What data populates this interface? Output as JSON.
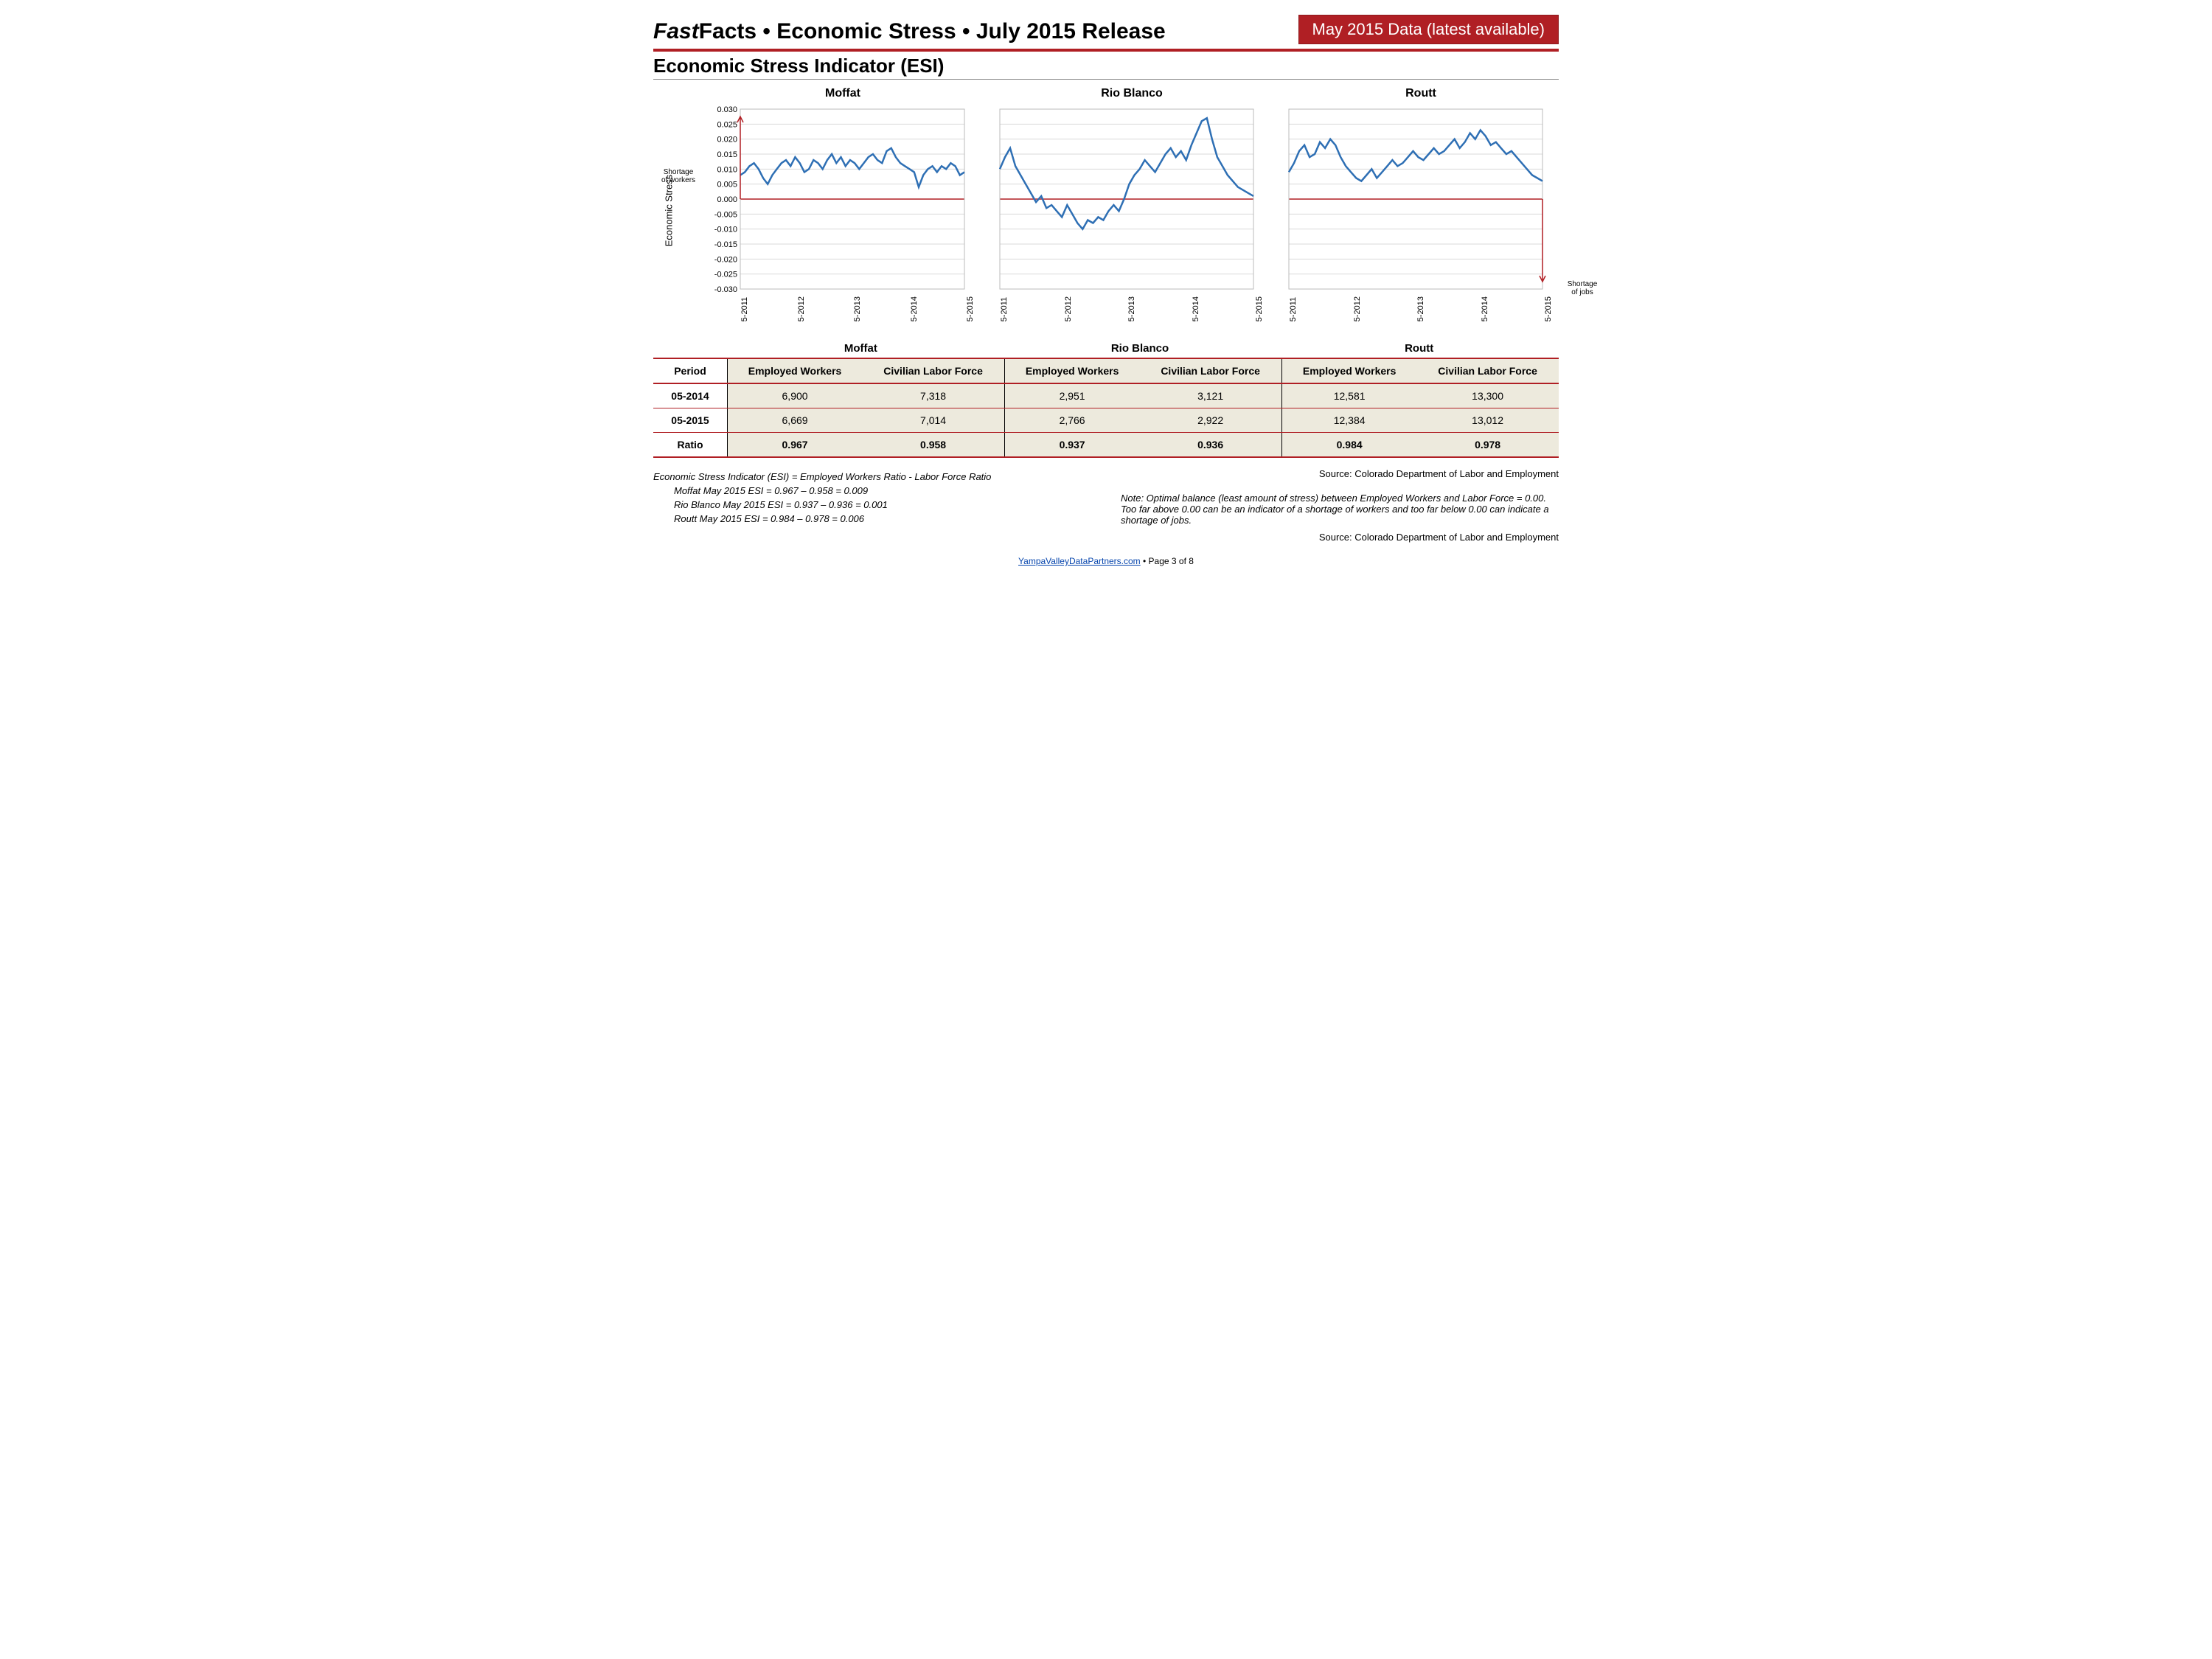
{
  "header": {
    "fast": "Fast",
    "facts": "Facts",
    "sep": " • ",
    "topic": "Economic Stress",
    "rel": "July 2015 Release",
    "badge": "May 2015 Data (latest available)",
    "subtitle": "Economic Stress Indicator (ESI)"
  },
  "axis": {
    "ylabel": "Economic Stress",
    "top_annot": "Shortage\nof workers",
    "bot_annot": "Shortage\nof jobs",
    "ylim": [
      -0.03,
      0.03
    ],
    "yticks": [
      0.03,
      0.025,
      0.02,
      0.015,
      0.01,
      0.005,
      0.0,
      -0.005,
      -0.01,
      -0.015,
      -0.02,
      -0.025,
      -0.03
    ],
    "xticks": [
      "5-2011",
      "5-2012",
      "5-2013",
      "5-2014",
      "5-2015"
    ],
    "line_color": "#2e6fb4",
    "line_width": 2.5,
    "grid_color": "#d9d9d9",
    "zero_color": "#b01f24",
    "bg": "#ffffff"
  },
  "panels": [
    {
      "name": "Moffat",
      "series": [
        0.008,
        0.009,
        0.011,
        0.012,
        0.01,
        0.007,
        0.005,
        0.008,
        0.01,
        0.012,
        0.013,
        0.011,
        0.014,
        0.012,
        0.009,
        0.01,
        0.013,
        0.012,
        0.01,
        0.013,
        0.015,
        0.012,
        0.014,
        0.011,
        0.013,
        0.012,
        0.01,
        0.012,
        0.014,
        0.015,
        0.013,
        0.012,
        0.016,
        0.017,
        0.014,
        0.012,
        0.011,
        0.01,
        0.009,
        0.004,
        0.008,
        0.01,
        0.011,
        0.009,
        0.011,
        0.01,
        0.012,
        0.011,
        0.008,
        0.009
      ]
    },
    {
      "name": "Rio Blanco",
      "series": [
        0.01,
        0.014,
        0.017,
        0.011,
        0.008,
        0.005,
        0.002,
        -0.001,
        0.001,
        -0.003,
        -0.002,
        -0.004,
        -0.006,
        -0.002,
        -0.005,
        -0.008,
        -0.01,
        -0.007,
        -0.008,
        -0.006,
        -0.007,
        -0.004,
        -0.002,
        -0.004,
        0.0,
        0.005,
        0.008,
        0.01,
        0.013,
        0.011,
        0.009,
        0.012,
        0.015,
        0.017,
        0.014,
        0.016,
        0.013,
        0.018,
        0.022,
        0.026,
        0.027,
        0.02,
        0.014,
        0.011,
        0.008,
        0.006,
        0.004,
        0.003,
        0.002,
        0.001
      ]
    },
    {
      "name": "Routt",
      "series": [
        0.009,
        0.012,
        0.016,
        0.018,
        0.014,
        0.015,
        0.019,
        0.017,
        0.02,
        0.018,
        0.014,
        0.011,
        0.009,
        0.007,
        0.006,
        0.008,
        0.01,
        0.007,
        0.009,
        0.011,
        0.013,
        0.011,
        0.012,
        0.014,
        0.016,
        0.014,
        0.013,
        0.015,
        0.017,
        0.015,
        0.016,
        0.018,
        0.02,
        0.017,
        0.019,
        0.022,
        0.02,
        0.023,
        0.021,
        0.018,
        0.019,
        0.017,
        0.015,
        0.016,
        0.014,
        0.012,
        0.01,
        0.008,
        0.007,
        0.006
      ]
    }
  ],
  "table": {
    "period_h": "Period",
    "cols": [
      "Employed Workers",
      "Civilian Labor Force"
    ],
    "groups": [
      "Moffat",
      "Rio Blanco",
      "Routt"
    ],
    "rows": [
      {
        "period": "05-2014",
        "vals": [
          "6,900",
          "7,318",
          "2,951",
          "3,121",
          "12,581",
          "13,300"
        ]
      },
      {
        "period": "05-2015",
        "vals": [
          "6,669",
          "7,014",
          "2,766",
          "2,922",
          "12,384",
          "13,012"
        ]
      }
    ],
    "ratio": {
      "label": "Ratio",
      "vals": [
        "0.967",
        "0.958",
        "0.937",
        "0.936",
        "0.984",
        "0.978"
      ]
    }
  },
  "notes": {
    "formula": "Economic Stress Indicator (ESI) = Employed Workers Ratio - Labor Force Ratio",
    "lines": [
      "Moffat May 2015 ESI = 0.967 – 0.958 = 0.009",
      "Rio Blanco May 2015 ESI = 0.937 – 0.936 = 0.001",
      "Routt May 2015 ESI = 0.984 – 0.978 = 0.006"
    ],
    "source": "Source: Colorado Department of Labor and Employment",
    "note": "Note: Optimal balance (least amount of stress) between Employed Workers and Labor Force = 0.00. Too far above 0.00 can be an indicator of a shortage of workers and too far below 0.00 can indicate a shortage of jobs."
  },
  "footer": {
    "link": "YampaValleyDataPartners.com",
    "page": " • Page 3 of 8",
    "source": "Source: Colorado Department of Labor and Employment"
  }
}
